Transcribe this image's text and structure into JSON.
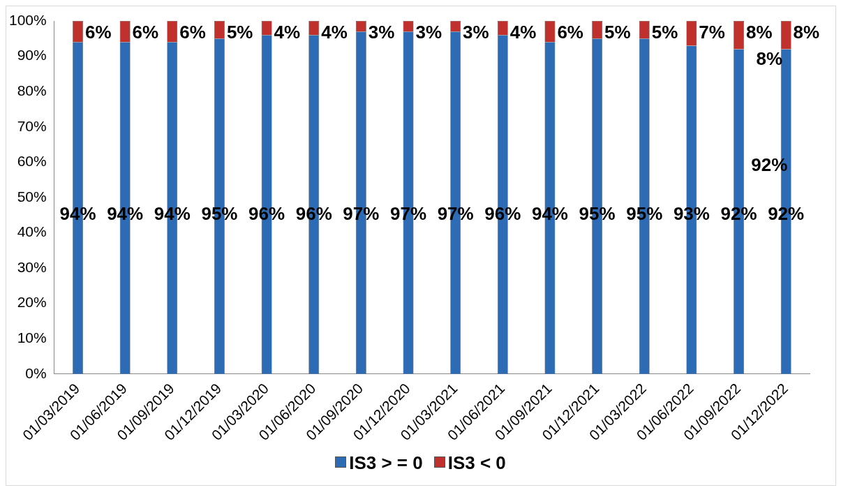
{
  "chart_data": {
    "type": "bar",
    "stacked": true,
    "categories": [
      "01/03/2019",
      "01/06/2019",
      "01/09/2019",
      "01/12/2019",
      "01/03/2020",
      "01/06/2020",
      "01/09/2020",
      "01/12/2020",
      "01/03/2021",
      "01/06/2021",
      "01/09/2021",
      "01/12/2021",
      "01/03/2022",
      "01/06/2022",
      "01/09/2022",
      "01/12/2022"
    ],
    "series": [
      {
        "name": "IS3 > = 0",
        "color": "#2e6bb5",
        "values": [
          94,
          94,
          94,
          95,
          96,
          96,
          97,
          97,
          97,
          96,
          94,
          95,
          95,
          93,
          92,
          92
        ],
        "value_labels": [
          "94%",
          "94%",
          "94%",
          "95%",
          "96%",
          "96%",
          "97%",
          "97%",
          "97%",
          "96%",
          "94%",
          "95%",
          "95%",
          "93%",
          "92%",
          "92%"
        ]
      },
      {
        "name": "IS3 < 0",
        "color": "#c0312d",
        "values": [
          6,
          6,
          6,
          5,
          4,
          4,
          3,
          3,
          3,
          4,
          6,
          5,
          5,
          7,
          8,
          8
        ],
        "value_labels": [
          "6%",
          "6%",
          "6%",
          "5%",
          "4%",
          "4%",
          "3%",
          "3%",
          "3%",
          "4%",
          "6%",
          "5%",
          "5%",
          "7%",
          "8%",
          "8%"
        ]
      }
    ],
    "ylim": [
      0,
      100
    ],
    "yticks": [
      {
        "value": 0,
        "label": "0%"
      },
      {
        "value": 10,
        "label": "10%"
      },
      {
        "value": 20,
        "label": "20%"
      },
      {
        "value": 30,
        "label": "30%"
      },
      {
        "value": 40,
        "label": "40%"
      },
      {
        "value": 50,
        "label": "50%"
      },
      {
        "value": 60,
        "label": "60%"
      },
      {
        "value": 70,
        "label": "70%"
      },
      {
        "value": 80,
        "label": "80%"
      },
      {
        "value": 90,
        "label": "90%"
      },
      {
        "value": 100,
        "label": "100%"
      }
    ],
    "annotations": [
      "8%",
      "92%"
    ],
    "legend": "bottom",
    "grid": false
  }
}
